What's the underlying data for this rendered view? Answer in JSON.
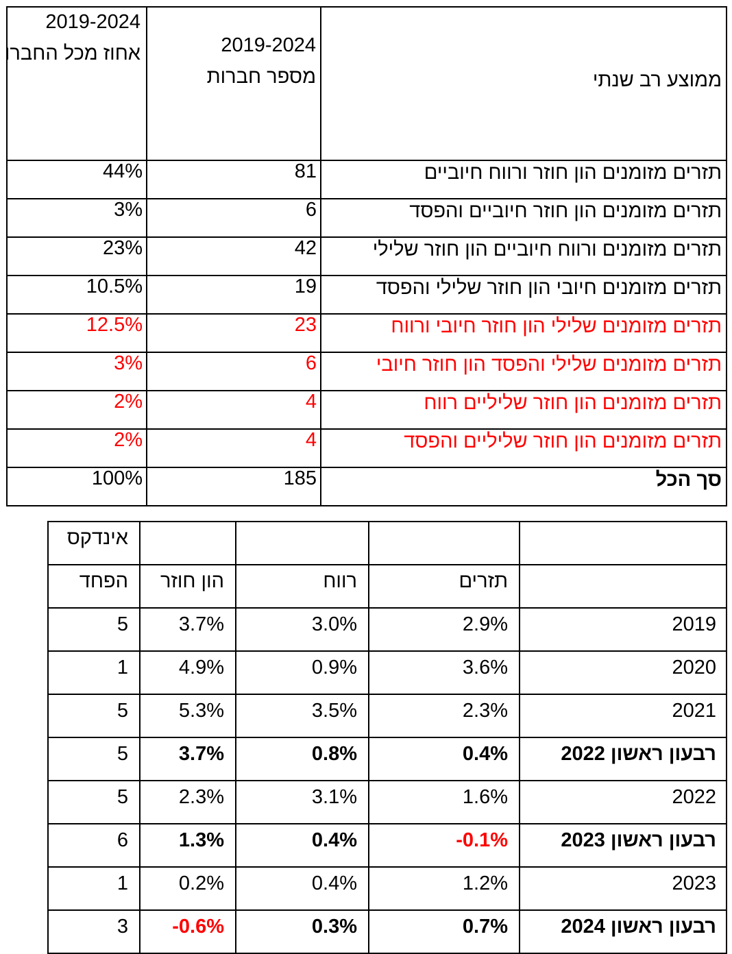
{
  "table1": {
    "header": {
      "label": "ממוצע רב שנתי",
      "count_years": "2019-2024",
      "count_title": "מספר חברות",
      "pct_years": "2019-2024",
      "pct_title": "אחוז מכל החברות שנסקרו"
    },
    "rows": [
      {
        "label": "תזרים מזומנים הון חוזר ורווח חיוביים",
        "count": "81",
        "pct": "44%",
        "red": false,
        "bold": false
      },
      {
        "label": "תזרים מזומנים הון חוזר חיוביים והפסד",
        "count": "6",
        "pct": "3%",
        "red": false,
        "bold": false
      },
      {
        "label": "תזרים מזומנים ורווח חיוביים הון חוזר שלילי",
        "count": "42",
        "pct": "23%",
        "red": false,
        "bold": false
      },
      {
        "label": "תזרים מזומנים חיובי הון חוזר שלילי והפסד",
        "count": "19",
        "pct": "10.5%",
        "red": false,
        "bold": false
      },
      {
        "label": "תזרים מזומנים שלילי הון חוזר חיובי  ורווח",
        "count": "23",
        "pct": "12.5%",
        "red": true,
        "bold": false
      },
      {
        "label": "תזרים מזומנים   שלילי  והפסד הון חוזר חיובי",
        "count": "6",
        "pct": "3%",
        "red": true,
        "bold": false
      },
      {
        "label": "תזרים מזומנים הון חוזר שליליים רווח",
        "count": "4",
        "pct": "2%",
        "red": true,
        "bold": false
      },
      {
        "label": "תזרים מזומנים הון חוזר שליליים והפסד",
        "count": "4",
        "pct": "2%",
        "red": true,
        "bold": false
      },
      {
        "label": "סך הכל",
        "count": "185",
        "pct": "100%",
        "red": false,
        "bold": true
      }
    ]
  },
  "table2": {
    "header_row1": {
      "index": "אינדקס"
    },
    "header_row2": {
      "cash": "תזרים",
      "profit": "רווח",
      "wc": "הון חוזר",
      "fear": "הפחד"
    },
    "rows": [
      {
        "period": "2019",
        "cash": "2.9%",
        "profit": "3.0%",
        "wc": "3.7%",
        "index": "5",
        "bold": false,
        "red_cash": false,
        "red_wc": false
      },
      {
        "period": "2020",
        "cash": "3.6%",
        "profit": "0.9%",
        "wc": "4.9%",
        "index": "1",
        "bold": false,
        "red_cash": false,
        "red_wc": false
      },
      {
        "period": "2021",
        "cash": "2.3%",
        "profit": "3.5%",
        "wc": "5.3%",
        "index": "5",
        "bold": false,
        "red_cash": false,
        "red_wc": false
      },
      {
        "period": "רבעון ראשון 2022",
        "cash": "0.4%",
        "profit": "0.8%",
        "wc": "3.7%",
        "index": "5",
        "bold": true,
        "red_cash": false,
        "red_wc": false
      },
      {
        "period": "2022",
        "cash": "1.6%",
        "profit": "3.1%",
        "wc": "2.3%",
        "index": "5",
        "bold": false,
        "red_cash": false,
        "red_wc": false
      },
      {
        "period": "רבעון ראשון 2023",
        "cash": "-0.1%",
        "profit": "0.4%",
        "wc": "1.3%",
        "index": "6",
        "bold": true,
        "red_cash": true,
        "red_wc": false
      },
      {
        "period": "2023",
        "cash": "1.2%",
        "profit": "0.4%",
        "wc": "0.2%",
        "index": "1",
        "bold": false,
        "red_cash": false,
        "red_wc": false
      },
      {
        "period": "רבעון ראשון 2024",
        "cash": "0.7%",
        "profit": "0.3%",
        "wc": "-0.6%",
        "index": "3",
        "bold": true,
        "red_cash": false,
        "red_wc": true
      }
    ]
  },
  "colors": {
    "highlight": "#ff0000",
    "text": "#000000",
    "border": "#000000"
  }
}
